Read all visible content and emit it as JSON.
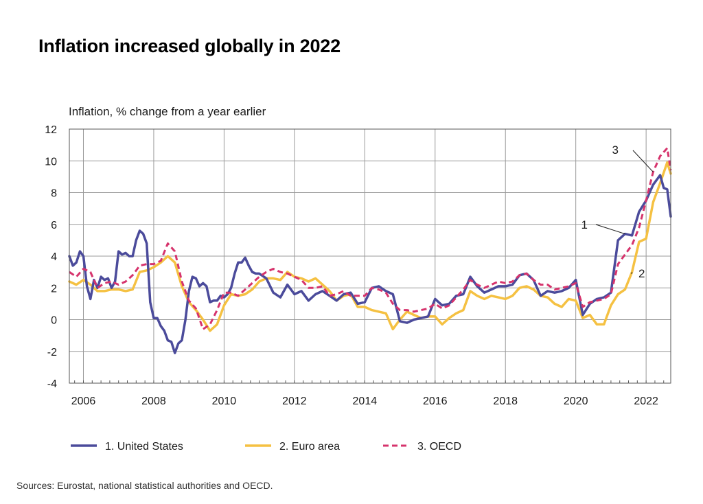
{
  "chart_data": {
    "type": "line",
    "title": "Inflation increased globally in 2022",
    "ylabel": "Inflation, % change from a year earlier",
    "xlabel": "",
    "xlim": [
      2005.6,
      2022.7
    ],
    "ylim": [
      -4,
      12
    ],
    "yticks": [
      -4,
      -2,
      0,
      2,
      4,
      6,
      8,
      10,
      12
    ],
    "ytick_labels": [
      "-4",
      "-2",
      "0",
      "2",
      "4",
      "6",
      "8",
      "10",
      "12"
    ],
    "xticks": [
      2006,
      2008,
      2010,
      2012,
      2014,
      2016,
      2018,
      2020,
      2022
    ],
    "xtick_labels": [
      "2006",
      "2008",
      "2010",
      "2012",
      "2014",
      "2016",
      "2018",
      "2020",
      "2022"
    ],
    "grid": true,
    "legend_position": "bottom",
    "series": [
      {
        "name": "1. United States",
        "color": "#4b4b9b",
        "style": "solid",
        "annotation": "1",
        "x": [
          2005.6,
          2005.7,
          2005.8,
          2005.9,
          2006.0,
          2006.1,
          2006.2,
          2006.3,
          2006.4,
          2006.5,
          2006.6,
          2006.7,
          2006.8,
          2006.9,
          2007.0,
          2007.1,
          2007.2,
          2007.3,
          2007.4,
          2007.5,
          2007.6,
          2007.7,
          2007.8,
          2007.9,
          2008.0,
          2008.1,
          2008.2,
          2008.3,
          2008.4,
          2008.5,
          2008.6,
          2008.7,
          2008.8,
          2008.9,
          2009.0,
          2009.1,
          2009.2,
          2009.3,
          2009.4,
          2009.5,
          2009.6,
          2009.7,
          2009.8,
          2009.9,
          2010.0,
          2010.1,
          2010.2,
          2010.3,
          2010.4,
          2010.5,
          2010.6,
          2010.7,
          2010.8,
          2010.9,
          2011.0,
          2011.2,
          2011.4,
          2011.6,
          2011.8,
          2012.0,
          2012.2,
          2012.4,
          2012.6,
          2012.8,
          2013.0,
          2013.2,
          2013.4,
          2013.6,
          2013.8,
          2014.0,
          2014.2,
          2014.4,
          2014.6,
          2014.8,
          2015.0,
          2015.2,
          2015.4,
          2015.6,
          2015.8,
          2016.0,
          2016.2,
          2016.4,
          2016.6,
          2016.8,
          2017.0,
          2017.2,
          2017.4,
          2017.6,
          2017.8,
          2018.0,
          2018.2,
          2018.4,
          2018.6,
          2018.8,
          2019.0,
          2019.2,
          2019.4,
          2019.6,
          2019.8,
          2020.0,
          2020.2,
          2020.4,
          2020.6,
          2020.8,
          2021.0,
          2021.2,
          2021.4,
          2021.6,
          2021.8,
          2022.0,
          2022.2,
          2022.4,
          2022.5,
          2022.6,
          2022.7
        ],
        "y": [
          4.0,
          3.4,
          3.6,
          4.3,
          4.0,
          2.1,
          1.3,
          2.5,
          2.0,
          2.7,
          2.5,
          2.6,
          2.0,
          2.4,
          4.3,
          4.1,
          4.2,
          4.0,
          4.0,
          5.0,
          5.6,
          5.4,
          4.8,
          1.1,
          0.1,
          0.1,
          -0.4,
          -0.7,
          -1.3,
          -1.4,
          -2.1,
          -1.5,
          -1.3,
          0.0,
          1.8,
          2.7,
          2.6,
          2.1,
          2.3,
          2.1,
          1.1,
          1.2,
          1.2,
          1.5,
          1.4,
          1.6,
          2.0,
          2.9,
          3.6,
          3.6,
          3.9,
          3.4,
          3.0,
          2.9,
          2.9,
          2.6,
          1.7,
          1.4,
          2.2,
          1.6,
          1.8,
          1.2,
          1.6,
          1.8,
          1.5,
          1.2,
          1.6,
          1.7,
          1.0,
          1.1,
          2.0,
          2.1,
          1.8,
          1.6,
          -0.1,
          -0.2,
          0.0,
          0.1,
          0.2,
          1.3,
          0.9,
          1.0,
          1.5,
          1.6,
          2.7,
          2.1,
          1.7,
          1.9,
          2.1,
          2.1,
          2.2,
          2.8,
          2.9,
          2.5,
          1.5,
          1.8,
          1.7,
          1.8,
          2.0,
          2.5,
          0.3,
          1.0,
          1.3,
          1.4,
          1.7,
          5.0,
          5.4,
          5.3,
          6.8,
          7.5,
          8.5,
          9.1,
          8.3,
          8.2,
          6.5
        ]
      },
      {
        "name": "2. Euro area",
        "color": "#f5c142",
        "style": "solid",
        "annotation": "2",
        "x": [
          2005.6,
          2005.8,
          2006.0,
          2006.2,
          2006.4,
          2006.6,
          2006.8,
          2007.0,
          2007.2,
          2007.4,
          2007.6,
          2007.8,
          2008.0,
          2008.2,
          2008.4,
          2008.6,
          2008.8,
          2009.0,
          2009.2,
          2009.4,
          2009.6,
          2009.8,
          2010.0,
          2010.2,
          2010.4,
          2010.6,
          2010.8,
          2011.0,
          2011.2,
          2011.4,
          2011.6,
          2011.8,
          2012.0,
          2012.2,
          2012.4,
          2012.6,
          2012.8,
          2013.0,
          2013.2,
          2013.4,
          2013.6,
          2013.8,
          2014.0,
          2014.2,
          2014.4,
          2014.6,
          2014.8,
          2015.0,
          2015.2,
          2015.4,
          2015.6,
          2015.8,
          2016.0,
          2016.2,
          2016.4,
          2016.6,
          2016.8,
          2017.0,
          2017.2,
          2017.4,
          2017.6,
          2017.8,
          2018.0,
          2018.2,
          2018.4,
          2018.6,
          2018.8,
          2019.0,
          2019.2,
          2019.4,
          2019.6,
          2019.8,
          2020.0,
          2020.2,
          2020.4,
          2020.6,
          2020.8,
          2021.0,
          2021.2,
          2021.4,
          2021.6,
          2021.8,
          2022.0,
          2022.2,
          2022.4,
          2022.6,
          2022.7
        ],
        "y": [
          2.4,
          2.2,
          2.5,
          2.2,
          1.8,
          1.8,
          1.9,
          1.9,
          1.8,
          1.9,
          3.0,
          3.1,
          3.3,
          3.6,
          4.0,
          3.6,
          2.1,
          1.1,
          0.6,
          0.0,
          -0.7,
          -0.3,
          0.9,
          1.6,
          1.5,
          1.6,
          1.9,
          2.4,
          2.6,
          2.6,
          2.5,
          3.0,
          2.7,
          2.6,
          2.4,
          2.6,
          2.2,
          1.8,
          1.2,
          1.5,
          1.6,
          0.8,
          0.8,
          0.6,
          0.5,
          0.4,
          -0.6,
          0.0,
          0.5,
          0.3,
          0.1,
          0.2,
          0.2,
          -0.3,
          0.1,
          0.4,
          0.6,
          1.8,
          1.5,
          1.3,
          1.5,
          1.4,
          1.3,
          1.5,
          2.0,
          2.1,
          1.9,
          1.5,
          1.4,
          1.0,
          0.8,
          1.3,
          1.2,
          0.1,
          0.3,
          -0.3,
          -0.3,
          0.9,
          1.6,
          1.9,
          3.0,
          4.9,
          5.1,
          7.4,
          8.6,
          9.9,
          9.2
        ]
      },
      {
        "name": "3. OECD",
        "color": "#d6336c",
        "style": "dashed",
        "annotation": "3",
        "x": [
          2005.6,
          2005.8,
          2006.0,
          2006.2,
          2006.4,
          2006.6,
          2006.8,
          2007.0,
          2007.2,
          2007.4,
          2007.6,
          2007.8,
          2008.0,
          2008.2,
          2008.4,
          2008.6,
          2008.8,
          2009.0,
          2009.2,
          2009.4,
          2009.6,
          2009.8,
          2010.0,
          2010.2,
          2010.4,
          2010.6,
          2010.8,
          2011.0,
          2011.2,
          2011.4,
          2011.6,
          2011.8,
          2012.0,
          2012.2,
          2012.4,
          2012.6,
          2012.8,
          2013.0,
          2013.2,
          2013.4,
          2013.6,
          2013.8,
          2014.0,
          2014.2,
          2014.4,
          2014.6,
          2014.8,
          2015.0,
          2015.2,
          2015.4,
          2015.6,
          2015.8,
          2016.0,
          2016.2,
          2016.4,
          2016.6,
          2016.8,
          2017.0,
          2017.2,
          2017.4,
          2017.6,
          2017.8,
          2018.0,
          2018.2,
          2018.4,
          2018.6,
          2018.8,
          2019.0,
          2019.2,
          2019.4,
          2019.6,
          2019.8,
          2020.0,
          2020.2,
          2020.4,
          2020.6,
          2020.8,
          2021.0,
          2021.2,
          2021.4,
          2021.6,
          2021.8,
          2022.0,
          2022.2,
          2022.4,
          2022.6,
          2022.7
        ],
        "y": [
          3.0,
          2.7,
          3.2,
          3.0,
          2.0,
          2.3,
          2.4,
          2.2,
          2.4,
          2.8,
          3.4,
          3.5,
          3.5,
          3.7,
          4.8,
          4.3,
          2.4,
          1.2,
          0.7,
          -0.6,
          -0.3,
          0.6,
          1.7,
          1.7,
          1.5,
          1.9,
          2.3,
          2.7,
          3.0,
          3.2,
          3.0,
          2.9,
          2.7,
          2.5,
          2.0,
          2.0,
          2.1,
          1.5,
          1.6,
          1.8,
          1.5,
          1.5,
          1.5,
          2.0,
          1.9,
          1.7,
          1.0,
          0.6,
          0.6,
          0.5,
          0.6,
          0.7,
          1.0,
          0.7,
          0.9,
          1.4,
          1.9,
          2.5,
          2.2,
          2.0,
          2.2,
          2.4,
          2.3,
          2.4,
          2.8,
          2.9,
          2.5,
          2.2,
          2.2,
          1.9,
          2.0,
          2.1,
          2.3,
          0.8,
          1.1,
          1.2,
          1.3,
          1.6,
          3.5,
          4.1,
          4.7,
          5.8,
          7.5,
          9.3,
          10.3,
          10.8,
          9.4
        ]
      }
    ],
    "source": "Sources: Eurostat, national statistical authorities and OECD."
  }
}
